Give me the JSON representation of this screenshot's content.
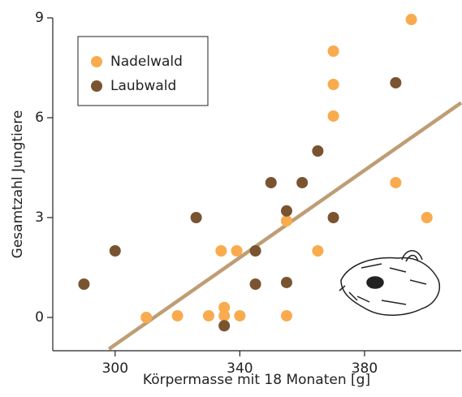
{
  "chart_data": {
    "type": "scatter",
    "x_label": "Körpermasse mit 18 Monaten [g]",
    "y_label": "Gesamtzahl Jungtiere",
    "xlim": [
      280,
      411
    ],
    "ylim": [
      -1,
      9
    ],
    "xticks": [
      300,
      340,
      380
    ],
    "yticks": [
      0,
      3,
      6,
      9
    ],
    "grid": false,
    "legend": "upper left",
    "series": [
      {
        "name": "Nadelwald",
        "color": "#f9ab4e",
        "x": [
          310,
          320,
          330,
          335,
          335,
          340,
          334,
          339,
          355,
          355,
          365,
          370,
          370,
          370,
          390,
          395,
          400
        ],
        "values": [
          0,
          0.05,
          0.05,
          0.3,
          0.05,
          0.05,
          2,
          2,
          0.05,
          2.9,
          2,
          8,
          7,
          6.05,
          4.05,
          8.95,
          3
        ]
      },
      {
        "name": "Laubwald",
        "color": "#7a5430",
        "x": [
          290,
          300,
          326,
          335,
          345,
          345,
          350,
          355,
          355,
          360,
          365,
          370,
          390
        ],
        "values": [
          1,
          2,
          3,
          -0.25,
          2,
          1,
          4.05,
          3.2,
          1.05,
          4.05,
          5,
          3,
          7.05
        ]
      }
    ],
    "trend_line": {
      "color": "#bf9d74",
      "x": [
        298,
        411
      ],
      "values": [
        -0.95,
        6.45
      ]
    }
  }
}
